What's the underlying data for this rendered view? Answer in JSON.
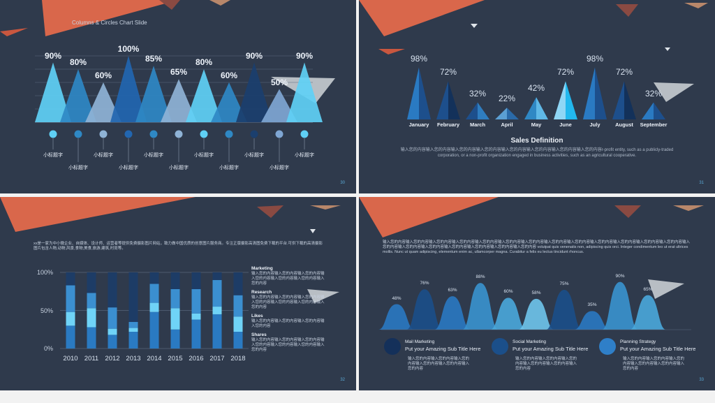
{
  "slide1": {
    "title": "Columns & Circles Chart Slide",
    "page": "30",
    "sub_label": "小标题字",
    "chart_data": {
      "type": "bar",
      "values": [
        90,
        80,
        60,
        100,
        85,
        65,
        80,
        60,
        90,
        50,
        90
      ],
      "ylim": [
        0,
        100
      ]
    },
    "colors": [
      "#5fd0f5",
      "#2f88c4",
      "#8fb3d6",
      "#2266b0",
      "#2f88c4",
      "#8fb3d6",
      "#5fd0f5",
      "#2f88c4",
      "#1b3f6e",
      "#7fa6d3",
      "#5fd0f5"
    ]
  },
  "slide2": {
    "page": "31",
    "heading": "Sales Definition",
    "body": "输入您的内容输入您的内容输入您的内容输入您的内容输入您的内容输入您的内容输入您的内容输入您的内容r-profit  entity, such as a publicly-traded corporation, or a non-profit organization engaged in business activities, such as an agricultural cooperative.",
    "chart_data": {
      "type": "bar",
      "categories": [
        "January",
        "February",
        "March",
        "April",
        "May",
        "June",
        "July",
        "August",
        "September"
      ],
      "values": [
        98,
        72,
        32,
        22,
        42,
        72,
        98,
        72,
        32
      ],
      "ylim": [
        0,
        100
      ]
    }
  },
  "slide3": {
    "page": "32",
    "intro": "xx是一家为中小微企业、自媒体、设计师、运营者等提供免费摄影图片网站，致力做中国优质的创意图片服务商。专注正版摄影高清图免费下载的平台.可供下载的高清摄影图片包含人物,动物,风景,食物,美食,旅游,建筑,时尚等。",
    "chart_data": {
      "type": "bar",
      "categories": [
        "2010",
        "2011",
        "2012",
        "2013",
        "2014",
        "2015",
        "2016",
        "2017",
        "2018"
      ],
      "y_ticks": [
        "0%",
        "50%",
        "100%"
      ],
      "ylim": [
        0,
        100
      ],
      "series": [
        {
          "values": [
            30,
            28,
            18,
            22,
            48,
            25,
            38,
            45,
            22
          ]
        },
        {
          "values": [
            18,
            25,
            8,
            5,
            12,
            28,
            8,
            10,
            20
          ]
        },
        {
          "values": [
            35,
            20,
            28,
            8,
            25,
            25,
            32,
            35,
            28
          ]
        },
        {
          "values": [
            17,
            27,
            46,
            65,
            15,
            22,
            22,
            10,
            30
          ]
        }
      ],
      "colors": [
        "#2a7ac2",
        "#6fd3f7",
        "#3b8fd0",
        "#1d3c66"
      ]
    },
    "legend": [
      {
        "title": "Marketing",
        "text": "输入您的内容输入您的内容输入您的内容输入您的内容输入您的内容输入您的内容输入您的内容"
      },
      {
        "title": "Research",
        "text": "输入您的内容输入您的内容输入您的内容输入您的内容输入您的内容输入您的内容输入您的内容"
      },
      {
        "title": "Likes",
        "text": "输入您的内容输入您的内容输入您的内容输入您的内容"
      },
      {
        "title": "Shares",
        "text": "输入您的内容输入您的内容输入您的内容输入您的内容输入您的内容输入您的内容输入您的内容"
      }
    ]
  },
  "slide4": {
    "page": "33",
    "intro": "输入您的内容输入您的内容输入您的内容输入您的内容输入您的内容输入您的内容输入您的内容输入您的内容输入您的内容输入您的内容输入您的内容输入您的内容输入您的内容输入您的内容输入您的内容输入您的内容输入您的内容输入您的内容输入您的内容输入您的内容 volutpat quis venenatis non, adipiscing quis orci. Integer condimentum leo ut erat ultrices mollis. Nunc ut quam adipiscing, elementum enim ac, ullamcorper magna. Curabitur a felis eu lectus tincidunt rhoncus.",
    "chart_data": {
      "type": "area",
      "values": [
        48,
        76,
        63,
        88,
        60,
        58,
        75,
        35,
        90,
        65
      ],
      "labels": [
        "48%",
        "76%",
        "63%",
        "88%",
        "60%",
        "58%",
        "75%",
        "35%",
        "90%",
        "65%"
      ],
      "ylim": [
        0,
        100
      ]
    },
    "colors": [
      "#2a79c2",
      "#1b4f8a",
      "#2a79c2",
      "#3a93cf",
      "#4aa8dc",
      "#6fc5ec",
      "#1b4f8a",
      "#2a79c2",
      "#3a93cf",
      "#4aa8dc"
    ],
    "items": [
      {
        "title": "Mail Marketing",
        "sub": "Put your Amazing Sub Title Here",
        "text": "输入您的内容输入您的内容输入您的内容输入您的内容输入您的内容输入您的内容",
        "color": "#14305a"
      },
      {
        "title": "Social Marketing",
        "sub": "Put your Amazing Sub Title Here",
        "text": "输入您的内容输入您的内容输入您的内容输入您的内容输入您的内容输入您的内容",
        "color": "#1b4f8a"
      },
      {
        "title": "Planning Strategy",
        "sub": "Put your Amazing Sub Title Here",
        "text": "输入您的内容输入您的内容输入您的内容输入您的内容输入您的内容输入您的内容",
        "color": "#2f7fc8"
      }
    ]
  }
}
